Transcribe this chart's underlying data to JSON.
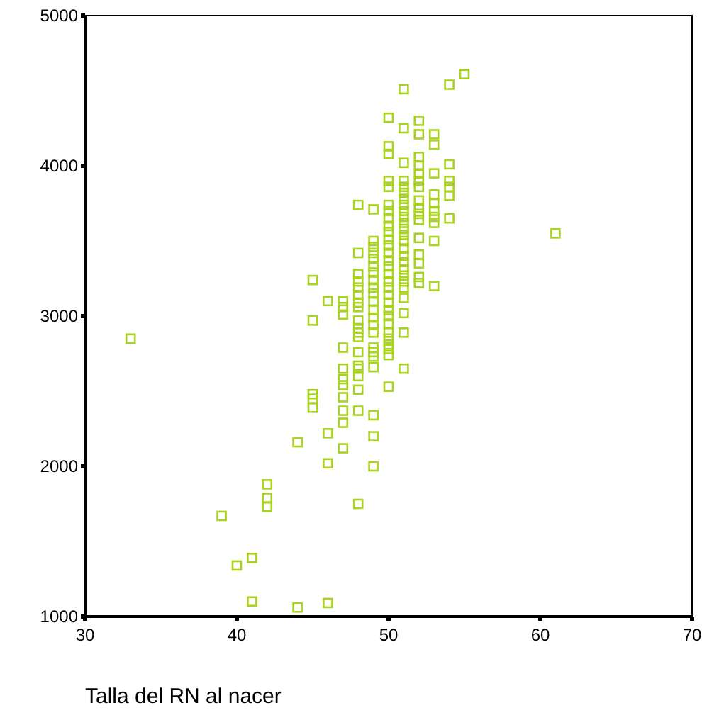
{
  "chart_data": {
    "type": "scatter",
    "xlabel": "Talla del RN al nacer",
    "xlim": [
      30,
      70
    ],
    "xticks": [
      30,
      40,
      50,
      60,
      70
    ],
    "ylim": [
      1000,
      5000
    ],
    "yticks": [
      1000,
      2000,
      3000,
      4000,
      5000
    ],
    "marker": "square",
    "grid": false,
    "series": [
      {
        "color": "#a8d420",
        "x": [
          33,
          39,
          40,
          41,
          41,
          42,
          42,
          42,
          44,
          44,
          45,
          45,
          45,
          45,
          45,
          46,
          46,
          46,
          46,
          47,
          47,
          47,
          47,
          47,
          47,
          47,
          47,
          47,
          47,
          47,
          48,
          48,
          48,
          48,
          48,
          48,
          48,
          48,
          48,
          48,
          48,
          48,
          48,
          48,
          48,
          48,
          48,
          48,
          48,
          49,
          49,
          49,
          49,
          49,
          49,
          49,
          49,
          49,
          49,
          49,
          49,
          49,
          49,
          49,
          49,
          49,
          49,
          49,
          49,
          49,
          49,
          50,
          50,
          50,
          50,
          50,
          50,
          50,
          50,
          50,
          50,
          50,
          50,
          50,
          50,
          50,
          50,
          50,
          50,
          50,
          50,
          50,
          50,
          50,
          50,
          50,
          50,
          50,
          50,
          50,
          51,
          51,
          51,
          51,
          51,
          51,
          51,
          51,
          51,
          51,
          51,
          51,
          51,
          51,
          51,
          51,
          51,
          51,
          51,
          51,
          51,
          51,
          51,
          51,
          51,
          52,
          52,
          52,
          52,
          52,
          52,
          52,
          52,
          52,
          52,
          52,
          52,
          52,
          52,
          52,
          52,
          53,
          53,
          53,
          53,
          53,
          53,
          53,
          53,
          53,
          53,
          54,
          54,
          54,
          54,
          54,
          54,
          55,
          61
        ],
        "values": [
          2850,
          1670,
          1340,
          1390,
          1100,
          1880,
          1790,
          1730,
          2160,
          1060,
          3240,
          2970,
          2480,
          2450,
          2390,
          3100,
          2220,
          2020,
          1090,
          3100,
          3060,
          3010,
          2790,
          2650,
          2580,
          2540,
          2460,
          2370,
          2290,
          2120,
          3740,
          3420,
          3280,
          3230,
          3190,
          3140,
          3090,
          3060,
          2970,
          2920,
          2890,
          2860,
          2760,
          2670,
          2650,
          2600,
          2510,
          2370,
          1750,
          3710,
          3500,
          3460,
          3420,
          3380,
          3330,
          3290,
          3240,
          3190,
          3150,
          3100,
          3040,
          2990,
          2940,
          2890,
          2790,
          2760,
          2730,
          2660,
          2340,
          2200,
          2000,
          4320,
          4130,
          4080,
          3900,
          3860,
          3740,
          3700,
          3650,
          3600,
          3560,
          3510,
          3470,
          3420,
          3370,
          3330,
          3280,
          3230,
          3190,
          3140,
          3090,
          3040,
          3000,
          2950,
          2890,
          2850,
          2810,
          2780,
          2740,
          2530,
          4510,
          4250,
          4020,
          3900,
          3860,
          3820,
          3780,
          3740,
          3700,
          3660,
          3620,
          3580,
          3540,
          3500,
          3450,
          3400,
          3360,
          3310,
          3270,
          3230,
          3190,
          3120,
          3020,
          2890,
          2650,
          4300,
          4210,
          4060,
          4000,
          3950,
          3900,
          3860,
          3770,
          3720,
          3680,
          3640,
          3520,
          3410,
          3350,
          3260,
          3220,
          4210,
          4140,
          3950,
          3810,
          3750,
          3700,
          3660,
          3620,
          3500,
          3200,
          4540,
          4010,
          3900,
          3860,
          3800,
          3650,
          4610,
          3550
        ]
      }
    ]
  }
}
